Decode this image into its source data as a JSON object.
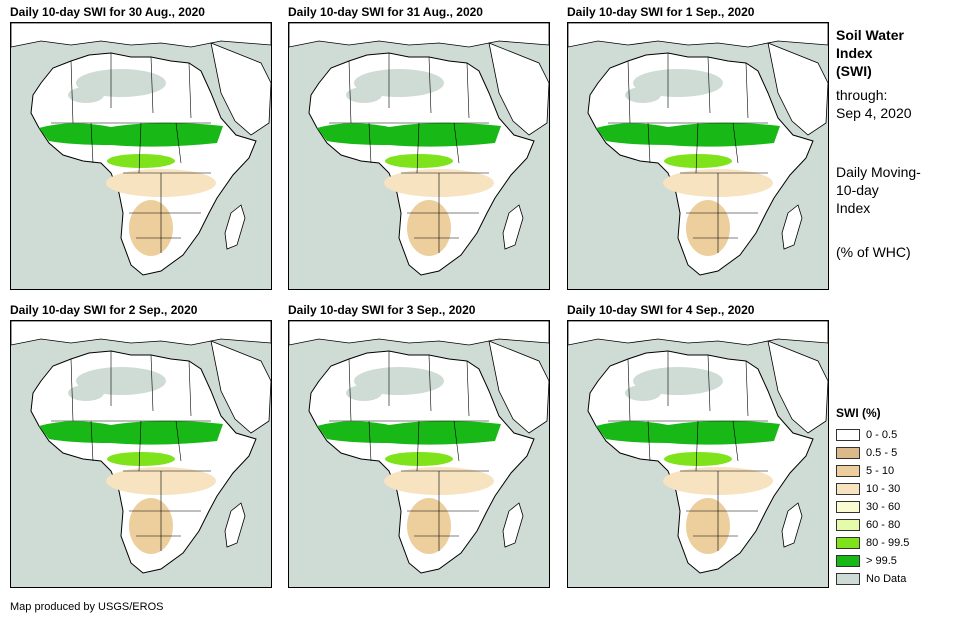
{
  "panels": [
    {
      "title": "Daily 10-day  SWI for 30 Aug., 2020"
    },
    {
      "title": "Daily 10-day  SWI for 31 Aug., 2020"
    },
    {
      "title": "Daily 10-day  SWI for 1  Sep., 2020"
    },
    {
      "title": "Daily 10-day  SWI for 2  Sep., 2020"
    },
    {
      "title": "Daily 10-day  SWI for 3  Sep., 2020"
    },
    {
      "title": "Daily 10-day  SWI for 4  Sep., 2020"
    }
  ],
  "info": {
    "title_line1": "Soil Water",
    "title_line2": "Index",
    "title_line3": "(SWI)",
    "through_label": "through:",
    "through_date": "Sep 4, 2020",
    "desc_line1": "Daily Moving-",
    "desc_line2": "10-day",
    "desc_line3": "Index",
    "units": "(% of WHC)"
  },
  "legend": {
    "title": "SWI (%)",
    "items": [
      {
        "label": "0 - 0.5",
        "color": "#ffffff"
      },
      {
        "label": "0.5 - 5",
        "color": "#dcb98a"
      },
      {
        "label": "5 - 10",
        "color": "#edcf9d"
      },
      {
        "label": "10 - 30",
        "color": "#f7e3c0"
      },
      {
        "label": "30 - 60",
        "color": "#fbfbd2"
      },
      {
        "label": "60 - 80",
        "color": "#e6fbaa"
      },
      {
        "label": "80 - 99.5",
        "color": "#7fe31b"
      },
      {
        "label": "> 99.5",
        "color": "#18b816"
      },
      {
        "label": "No Data",
        "color": "#cfdcd6"
      }
    ]
  },
  "credit": "Map produced by USGS/EROS"
}
